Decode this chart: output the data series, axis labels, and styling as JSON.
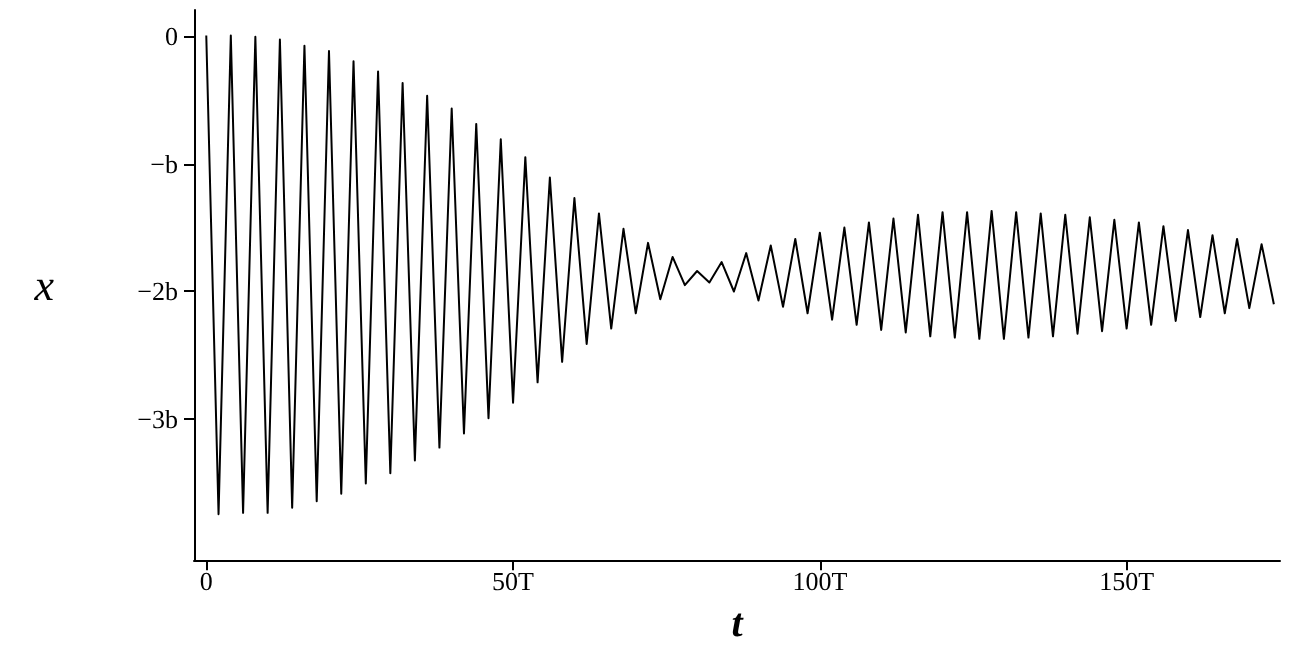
{
  "chart_data": {
    "type": "line",
    "xlabel": "t",
    "ylabel": "x",
    "xlim": [
      -2,
      175
    ],
    "ylim": [
      -4.1,
      0.2
    ],
    "xticks": [
      0,
      {
        "value": 50,
        "label": "50T"
      },
      {
        "value": 100,
        "label": "100T"
      },
      {
        "value": 150,
        "label": "150T"
      }
    ],
    "yticks": [
      0,
      {
        "value": -1,
        "label": "−b"
      },
      {
        "value": -2,
        "label": "−2b"
      },
      {
        "value": -3,
        "label": "−3b"
      }
    ],
    "x": [
      0,
      2,
      4,
      6,
      8,
      10,
      12,
      14,
      16,
      18,
      20,
      22,
      24,
      26,
      28,
      30,
      32,
      34,
      36,
      38,
      40,
      42,
      44,
      46,
      48,
      50,
      52,
      54,
      56,
      58,
      60,
      62,
      64,
      66,
      68,
      70,
      72,
      74,
      76,
      78,
      80,
      82,
      84,
      86,
      88,
      90,
      92,
      94,
      96,
      98,
      100,
      102,
      104,
      106,
      108,
      110,
      112,
      114,
      116,
      118,
      120,
      122,
      124,
      126,
      128,
      130,
      132,
      134,
      136,
      138,
      140,
      142,
      144,
      146,
      148,
      150,
      152,
      154,
      156,
      158,
      160,
      162,
      164,
      166,
      168,
      170,
      172,
      174
    ],
    "series": [
      {
        "color": "#000000",
        "values": [
          0.0,
          -3.74,
          0.0,
          -3.73,
          -0.01,
          -3.73,
          -0.03,
          -3.69,
          -0.08,
          -3.64,
          -0.12,
          -3.58,
          -0.2,
          -3.5,
          -0.28,
          -3.42,
          -0.37,
          -3.32,
          -0.47,
          -3.22,
          -0.57,
          -3.11,
          -0.69,
          -2.99,
          -0.81,
          -2.87,
          -0.95,
          -2.71,
          -1.11,
          -2.55,
          -1.27,
          -2.41,
          -1.39,
          -2.29,
          -1.51,
          -2.17,
          -1.62,
          -2.06,
          -1.73,
          -1.95,
          -1.84,
          -1.93,
          -1.77,
          -2.0,
          -1.7,
          -2.07,
          -1.64,
          -2.12,
          -1.59,
          -2.17,
          -1.54,
          -2.22,
          -1.5,
          -2.26,
          -1.46,
          -2.3,
          -1.43,
          -2.32,
          -1.4,
          -2.35,
          -1.38,
          -2.36,
          -1.38,
          -2.37,
          -1.37,
          -2.37,
          -1.38,
          -2.36,
          -1.39,
          -2.35,
          -1.4,
          -2.33,
          -1.42,
          -2.31,
          -1.44,
          -2.29,
          -1.46,
          -2.26,
          -1.49,
          -2.23,
          -1.52,
          -2.2,
          -1.56,
          -2.17,
          -1.59,
          -2.13,
          -1.63,
          -2.1
        ]
      }
    ]
  }
}
